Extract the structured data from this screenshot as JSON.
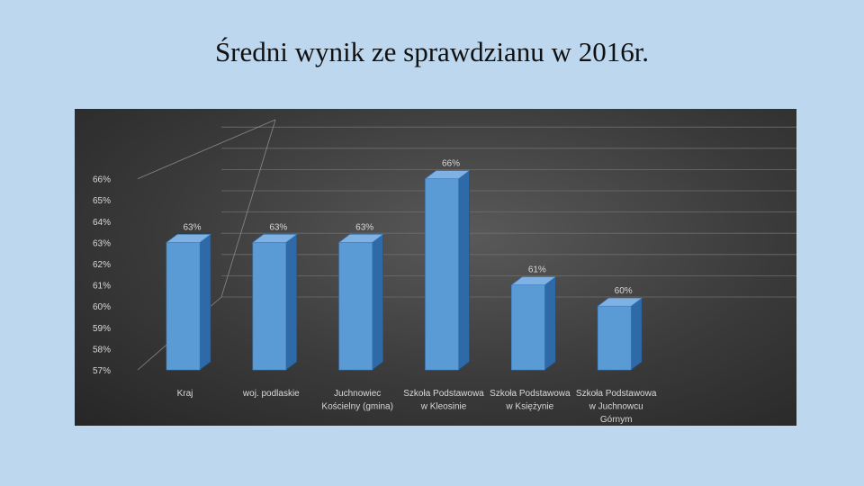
{
  "slide": {
    "title": "Średni wynik ze sprawdzianu w 2016r."
  },
  "colors": {
    "background": "#bdd7ee",
    "bar_front": "#5b9bd5",
    "bar_side": "#2e6aa8",
    "bar_top": "#7fb2e3",
    "text": "#d9d9d9"
  },
  "chart_data": {
    "type": "bar",
    "style": "3d-column",
    "title": "",
    "xlabel": "",
    "ylabel": "",
    "ylim": [
      57,
      66
    ],
    "y_ticks": [
      "57%",
      "58%",
      "59%",
      "60%",
      "61%",
      "62%",
      "63%",
      "64%",
      "65%",
      "66%"
    ],
    "grid": true,
    "categories": [
      [
        "Kraj"
      ],
      [
        "woj. podlaskie"
      ],
      [
        "Juchnowiec",
        "Kościelny (gmina)"
      ],
      [
        "Szkoła Podstawowa",
        "w Kleosinie"
      ],
      [
        "Szkoła Podstawowa",
        "w Księżynie"
      ],
      [
        "Szkoła Podstawowa",
        "w Juchnowcu",
        "Górnym"
      ]
    ],
    "values": [
      63,
      63,
      63,
      66,
      61,
      60
    ],
    "data_labels": [
      "63%",
      "63%",
      "63%",
      "66%",
      "61%",
      "60%"
    ]
  }
}
